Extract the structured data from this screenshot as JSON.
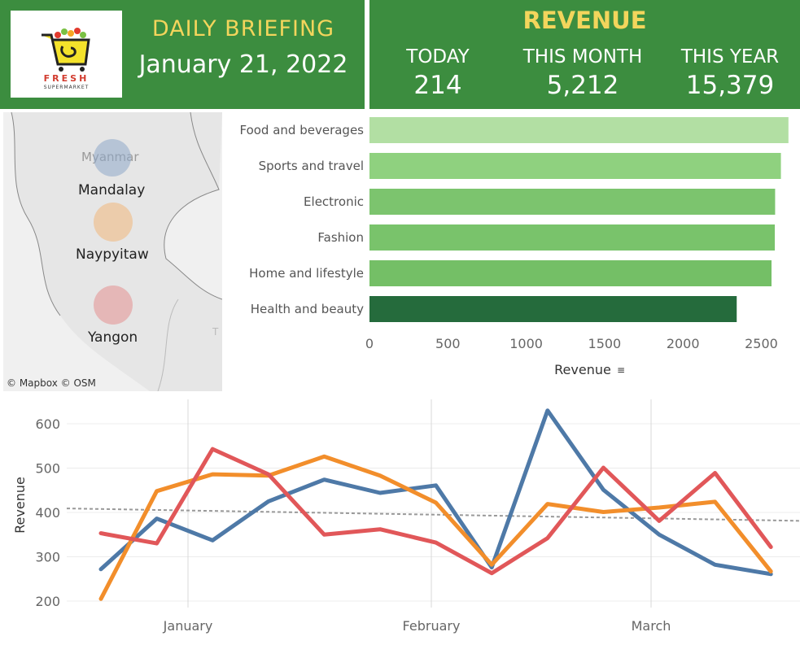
{
  "header": {
    "logo": {
      "brand": "FRESH",
      "sub": "SUPERMARKET",
      "icon": "shopping-cart-icon"
    },
    "title": "DAILY BRIEFING",
    "date": "January 21, 2022"
  },
  "revenue": {
    "title": "REVENUE",
    "kpis": [
      {
        "label": "TODAY",
        "value": "214"
      },
      {
        "label": "THIS MONTH",
        "value": "5,212"
      },
      {
        "label": "THIS YEAR",
        "value": "15,379"
      }
    ]
  },
  "map": {
    "country_label": "Myanmar",
    "cities": [
      {
        "name": "Mandalay",
        "color": "#8ea8c8"
      },
      {
        "name": "Naypyitaw",
        "color": "#f0b77a"
      },
      {
        "name": "Yangon",
        "color": "#e48f8f"
      }
    ],
    "attribution": "© Mapbox © OSM"
  },
  "chart_data": [
    {
      "type": "bar",
      "orientation": "horizontal",
      "categories": [
        "Food and beverages",
        "Sports and travel",
        "Electronic",
        "Fashion",
        "Home and lifestyle",
        "Health and beauty"
      ],
      "values": [
        2673,
        2625,
        2588,
        2586,
        2565,
        2343
      ],
      "colors": [
        "#b2dfa3",
        "#8fd17f",
        "#7cc46e",
        "#79c36b",
        "#74bf66",
        "#256b3c"
      ],
      "xlabel": "Revenue",
      "xticks": [
        "0",
        "500",
        "1000",
        "1500",
        "2000",
        "2500"
      ],
      "xlim": [
        0,
        2700
      ],
      "grid": false
    },
    {
      "type": "line",
      "ylabel": "Revenue",
      "x": [
        "2022-01-01",
        "2022-01-08",
        "2022-01-15",
        "2022-01-22",
        "2022-01-29",
        "2022-02-05",
        "2022-02-12",
        "2022-02-19",
        "2022-02-26",
        "2022-03-05",
        "2022-03-12",
        "2022-03-19",
        "2022-03-26"
      ],
      "xticks": [
        "January",
        "February",
        "March"
      ],
      "yticks": [
        "200",
        "300",
        "400",
        "500",
        "600"
      ],
      "ylim": [
        190,
        620
      ],
      "series": [
        {
          "color": "#4e79a7",
          "values": [
            272,
            386,
            337,
            425,
            474,
            444,
            461,
            276,
            630,
            451,
            350,
            282,
            261
          ]
        },
        {
          "color": "#f28e2b",
          "values": [
            205,
            448,
            486,
            483,
            526,
            483,
            422,
            282,
            419,
            401,
            411,
            424,
            267
          ]
        },
        {
          "color": "#e15759",
          "values": [
            353,
            330,
            543,
            486,
            350,
            362,
            332,
            263,
            342,
            501,
            381,
            489,
            322
          ]
        }
      ],
      "trend_line": {
        "style": "dashed",
        "color": "#999999",
        "from": 409,
        "to": 381
      },
      "grid": true
    }
  ]
}
